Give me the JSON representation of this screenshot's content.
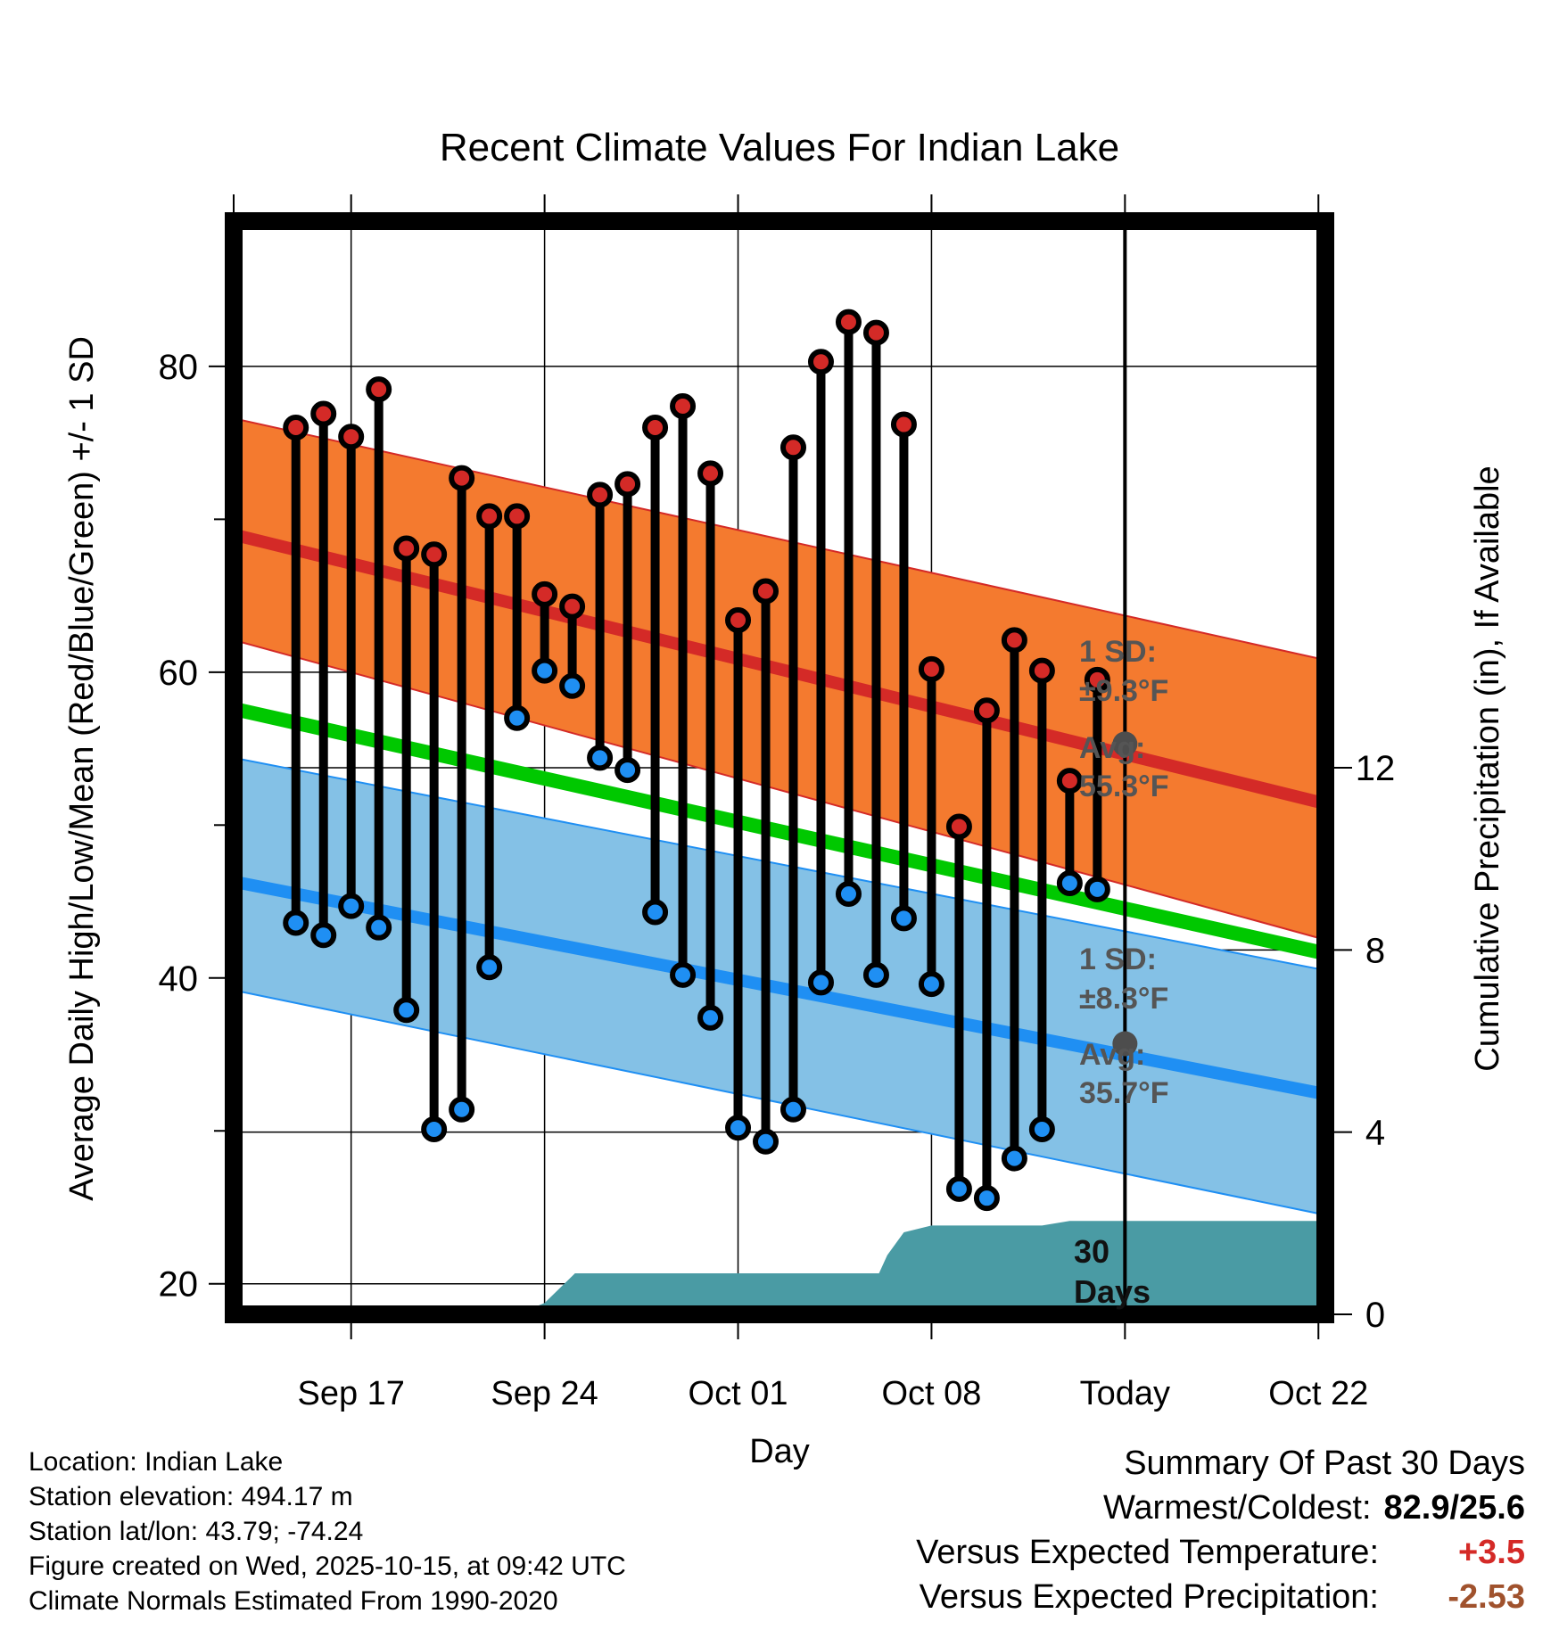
{
  "chart_data": {
    "type": "line",
    "title": "Recent Climate Values For Indian Lake",
    "xlabel": "Day",
    "ylabel": "Average Daily High/Low/Mean (Red/Blue/Green) +/- 1 SD",
    "y2label": "Cumulative Precipitation (in), If Available",
    "ylim": [
      18,
      89.5
    ],
    "y2lim": [
      0,
      24
    ],
    "y_ticks": [
      20,
      40,
      60,
      80
    ],
    "y2_ticks": [
      0,
      4,
      8,
      12
    ],
    "xlim": [
      -4.25,
      35.25
    ],
    "x_ticks": [
      {
        "day": 0,
        "label": "Sep 17"
      },
      {
        "day": 7,
        "label": "Sep 24"
      },
      {
        "day": 14,
        "label": "Oct 01"
      },
      {
        "day": 21,
        "label": "Oct 08"
      },
      {
        "day": 28,
        "label": "Today"
      },
      {
        "day": 35,
        "label": "Oct 22"
      }
    ],
    "normals": {
      "high_avg": [
        69.0,
        51.4
      ],
      "high_sd_upper": [
        76.6,
        60.8
      ],
      "high_sd_lower": [
        62.1,
        42.5
      ],
      "low_avg": [
        46.3,
        32.4
      ],
      "low_sd_upper": [
        54.4,
        40.5
      ],
      "low_sd_lower": [
        39.2,
        24.5
      ],
      "mean_avg": [
        57.6,
        41.6
      ],
      "x_range": [
        -4.25,
        35.25
      ]
    },
    "daily": [
      {
        "day": -2,
        "high": 76.0,
        "low": 43.6
      },
      {
        "day": -1,
        "high": 76.9,
        "low": 42.8
      },
      {
        "day": 0,
        "high": 75.4,
        "low": 44.7
      },
      {
        "day": 1,
        "high": 78.5,
        "low": 43.3
      },
      {
        "day": 2,
        "high": 68.1,
        "low": 37.9
      },
      {
        "day": 3,
        "high": 67.7,
        "low": 30.1
      },
      {
        "day": 4,
        "high": 72.7,
        "low": 31.4
      },
      {
        "day": 5,
        "high": 70.2,
        "low": 40.7
      },
      {
        "day": 6,
        "high": 70.2,
        "low": 57.0
      },
      {
        "day": 7,
        "high": 65.1,
        "low": 60.1
      },
      {
        "day": 8,
        "high": 64.3,
        "low": 59.1
      },
      {
        "day": 9,
        "high": 71.6,
        "low": 54.4
      },
      {
        "day": 10,
        "high": 72.3,
        "low": 53.6
      },
      {
        "day": 11,
        "high": 76.0,
        "low": 44.3
      },
      {
        "day": 12,
        "high": 77.4,
        "low": 40.2
      },
      {
        "day": 13,
        "high": 73.0,
        "low": 37.4
      },
      {
        "day": 14,
        "high": 63.4,
        "low": 30.2
      },
      {
        "day": 15,
        "high": 65.3,
        "low": 29.3
      },
      {
        "day": 16,
        "high": 74.7,
        "low": 31.4
      },
      {
        "day": 17,
        "high": 80.3,
        "low": 39.7
      },
      {
        "day": 18,
        "high": 82.9,
        "low": 45.5
      },
      {
        "day": 19,
        "high": 82.2,
        "low": 40.2
      },
      {
        "day": 20,
        "high": 76.2,
        "low": 43.9
      },
      {
        "day": 21,
        "high": 60.2,
        "low": 39.6
      },
      {
        "day": 22,
        "high": 49.9,
        "low": 26.2
      },
      {
        "day": 23,
        "high": 57.5,
        "low": 25.6
      },
      {
        "day": 24,
        "high": 62.1,
        "low": 28.2
      },
      {
        "day": 25,
        "high": 60.1,
        "low": 30.1
      },
      {
        "day": 26,
        "high": 52.9,
        "low": 46.2
      },
      {
        "day": 27,
        "high": 59.5,
        "low": 45.8
      }
    ],
    "precip_cumulative": [
      {
        "day": 2.5,
        "value": 0.0
      },
      {
        "day": 6.0,
        "value": 0.0
      },
      {
        "day": 7.0,
        "value": 0.25
      },
      {
        "day": 8.1,
        "value": 0.9
      },
      {
        "day": 8.5,
        "value": 0.9
      },
      {
        "day": 18.0,
        "value": 0.9
      },
      {
        "day": 19.1,
        "value": 0.9
      },
      {
        "day": 19.4,
        "value": 1.3
      },
      {
        "day": 20.0,
        "value": 1.8
      },
      {
        "day": 21.0,
        "value": 1.95
      },
      {
        "day": 25.0,
        "value": 1.95
      },
      {
        "day": 26.0,
        "value": 2.05
      },
      {
        "day": 27.0,
        "value": 2.05
      },
      {
        "day": 35.25,
        "value": 2.05
      }
    ],
    "annotations": {
      "high_sd_line1": "1 SD:",
      "high_sd_line2": "±9.3°F",
      "high_avg_line1": "Avg:",
      "high_avg_line2": "55.3°F",
      "low_sd_line1": "1 SD:",
      "low_sd_line2": "±8.3°F",
      "low_avg_line1": "Avg:",
      "low_avg_line2": "35.7°F",
      "days_line1": "30",
      "days_line2": "Days",
      "today_high_avg": 55.3,
      "today_low_avg": 35.7
    },
    "colors": {
      "high_band": "#f47a2f",
      "high_avg": "#d42a27",
      "low_band": "#84c1e6",
      "low_avg": "#1f8ff3",
      "mean": "#00c800",
      "precip": "#4a9ba4",
      "high_dot": "#d42a27",
      "low_dot": "#1f8ff3",
      "marker_today": "#4d4d4d"
    }
  },
  "footer": {
    "location": "Location: Indian Lake",
    "elevation": "Station elevation: 494.17 m",
    "latlon": "Station lat/lon: 43.79; -74.24",
    "created": "Figure created on Wed, 2025-10-15, at 09:42 UTC",
    "normals": "Climate Normals Estimated From 1990-2020"
  },
  "summary": {
    "title": "Summary Of Past 30 Days",
    "warm_cold_label": "Warmest/Coldest:",
    "warm_cold_value": "82.9/25.6",
    "temp_label": "Versus Expected Temperature:",
    "temp_value": "+3.5",
    "temp_color": "#d42a27",
    "precip_label": "Versus Expected Precipitation:",
    "precip_value": "-2.53",
    "precip_color": "#a0522d"
  }
}
